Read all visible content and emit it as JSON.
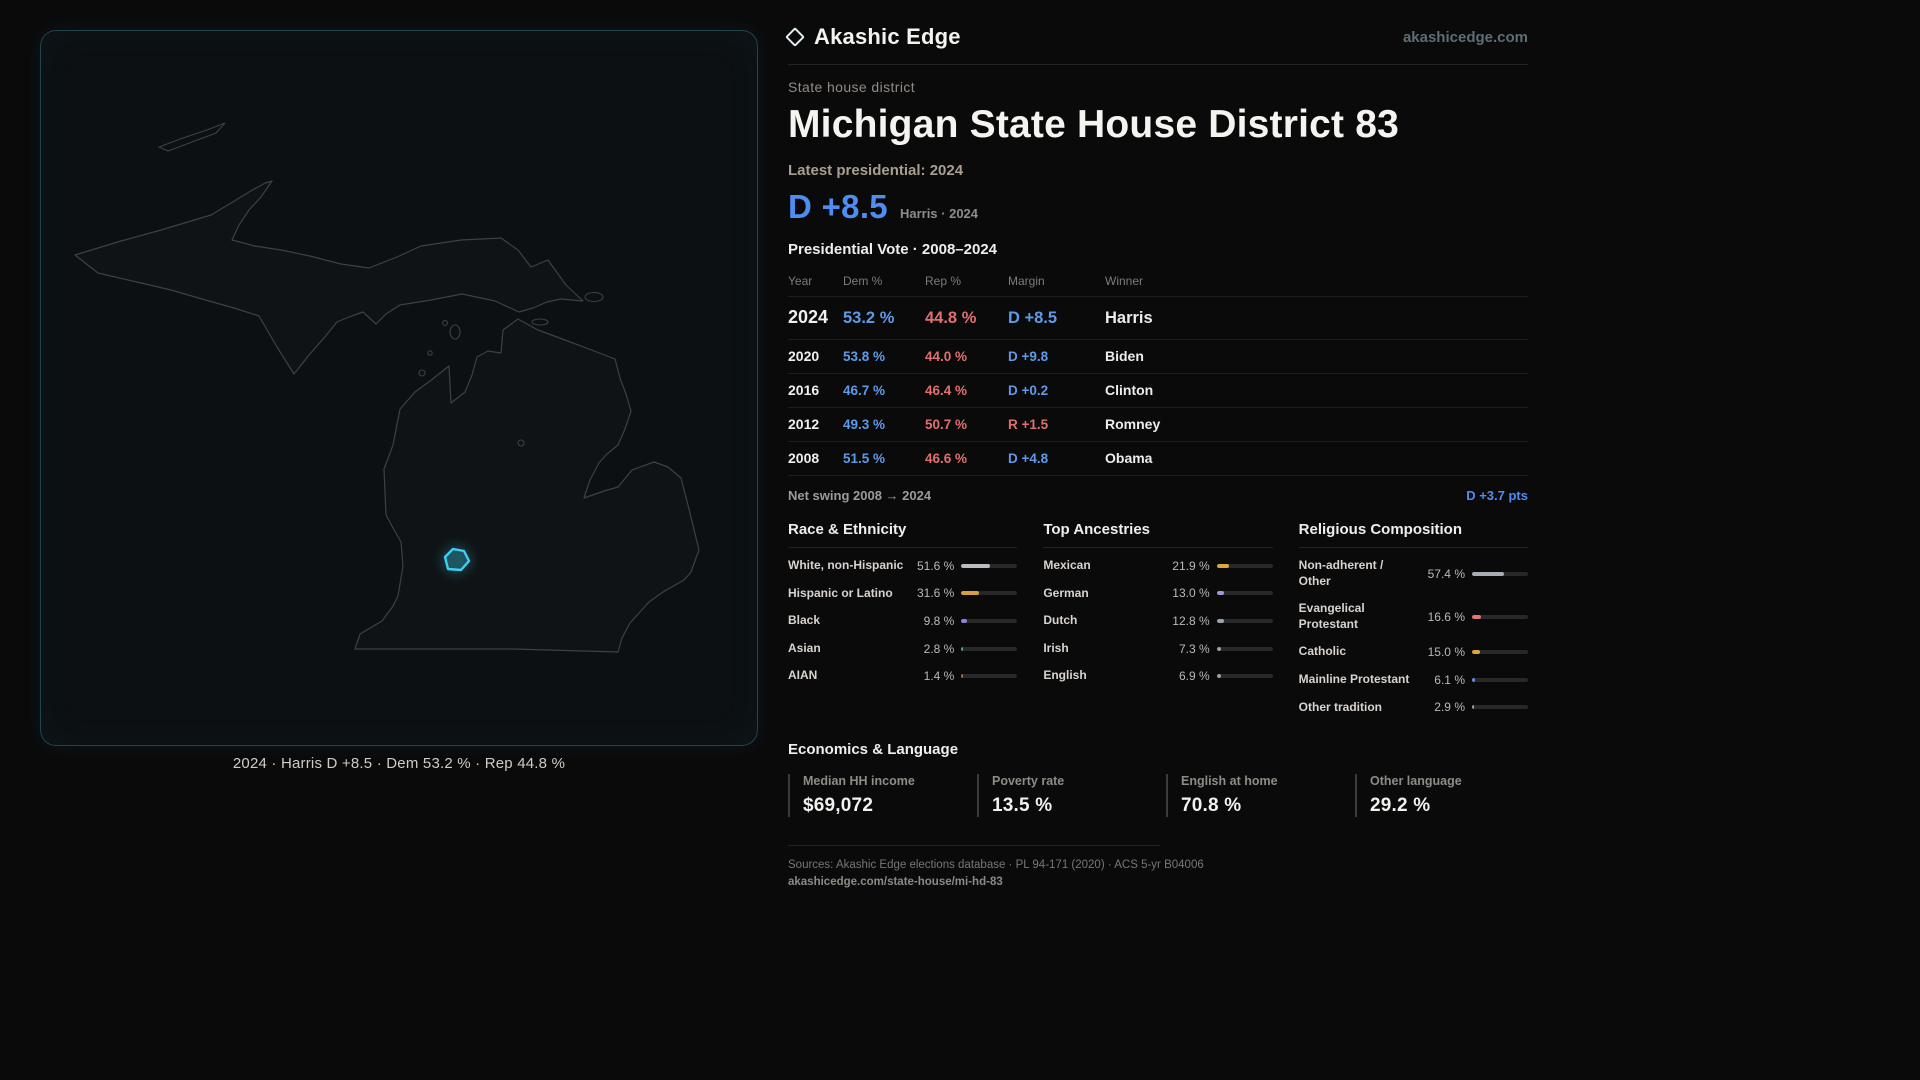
{
  "header": {
    "brand": "Akashic Edge",
    "site_link": "akashicedge.com"
  },
  "map": {
    "caption": "2024 · Harris D +8.5 · Dem 53.2 % · Rep 44.8 %",
    "district_color": "#3fd0f0"
  },
  "profile": {
    "kicker": "State house district",
    "title": "Michigan State House District 83",
    "latest_label": "Latest presidential: 2024",
    "headline_margin": "D +8.5",
    "headline_sub": "Harris · 2024"
  },
  "vote_table": {
    "title": "Presidential Vote · 2008–2024",
    "columns": [
      "Year",
      "Dem %",
      "Rep %",
      "Margin",
      "Winner"
    ],
    "rows": [
      {
        "year": "2024",
        "dem": "53.2 %",
        "rep": "44.8 %",
        "margin": "D +8.5",
        "party": "D",
        "winner": "Harris"
      },
      {
        "year": "2020",
        "dem": "53.8 %",
        "rep": "44.0 %",
        "margin": "D +9.8",
        "party": "D",
        "winner": "Biden"
      },
      {
        "year": "2016",
        "dem": "46.7 %",
        "rep": "46.4 %",
        "margin": "D +0.2",
        "party": "D",
        "winner": "Clinton"
      },
      {
        "year": "2012",
        "dem": "49.3 %",
        "rep": "50.7 %",
        "margin": "R +1.5",
        "party": "R",
        "winner": "Romney"
      },
      {
        "year": "2008",
        "dem": "51.5 %",
        "rep": "46.6 %",
        "margin": "D +4.8",
        "party": "D",
        "winner": "Obama"
      }
    ],
    "net_swing_label": "Net swing 2008 → 2024",
    "net_swing_value": "D +3.7 pts"
  },
  "demographics": {
    "race": {
      "title": "Race & Ethnicity",
      "rows": [
        {
          "label": "White, non-Hispanic",
          "value": "51.6 %",
          "pct": 51.6,
          "color": "#b9bdc2"
        },
        {
          "label": "Hispanic or Latino",
          "value": "31.6 %",
          "pct": 31.6,
          "color": "#d99f3f"
        },
        {
          "label": "Black",
          "value": "9.8 %",
          "pct": 9.8,
          "color": "#8f7fe0"
        },
        {
          "label": "Asian",
          "value": "2.8 %",
          "pct": 2.8,
          "color": "#4fae7d"
        },
        {
          "label": "AIAN",
          "value": "1.4 %",
          "pct": 1.4,
          "color": "#c2604e"
        }
      ]
    },
    "ancestry": {
      "title": "Top Ancestries",
      "rows": [
        {
          "label": "Mexican",
          "value": "21.9 %",
          "pct": 21.9,
          "color": "#d9a83d"
        },
        {
          "label": "German",
          "value": "13.0 %",
          "pct": 13.0,
          "color": "#a29ad0"
        },
        {
          "label": "Dutch",
          "value": "12.8 %",
          "pct": 12.8,
          "color": "#9aa3ab"
        },
        {
          "label": "Irish",
          "value": "7.3 %",
          "pct": 7.3,
          "color": "#9aa3ab"
        },
        {
          "label": "English",
          "value": "6.9 %",
          "pct": 6.9,
          "color": "#9aa3ab"
        }
      ]
    },
    "religion": {
      "title": "Religious Composition",
      "rows": [
        {
          "label": "Non-adherent / Other",
          "value": "57.4 %",
          "pct": 57.4,
          "color": "#a8adb3"
        },
        {
          "label": "Evangelical Protestant",
          "value": "16.6 %",
          "pct": 16.6,
          "color": "#e0766e"
        },
        {
          "label": "Catholic",
          "value": "15.0 %",
          "pct": 15.0,
          "color": "#d9a83d"
        },
        {
          "label": "Mainline Protestant",
          "value": "6.1 %",
          "pct": 6.1,
          "color": "#5b8ef0"
        },
        {
          "label": "Other tradition",
          "value": "2.9 %",
          "pct": 2.9,
          "color": "#9aa3ab"
        }
      ]
    }
  },
  "economics": {
    "title": "Economics & Language",
    "stats": [
      {
        "label": "Median HH income",
        "value": "$69,072"
      },
      {
        "label": "Poverty rate",
        "value": "13.5 %"
      },
      {
        "label": "English at home",
        "value": "70.8 %"
      },
      {
        "label": "Other language",
        "value": "29.2 %"
      }
    ]
  },
  "footer": {
    "sources": "Sources: Akashic Edge elections database · PL 94-171 (2020) · ACS 5-yr B04006",
    "permalink": "akashicedge.com/state-house/mi-hd-83"
  },
  "colors": {
    "dem_blue": "#5b9af0",
    "rep_red": "#e07070",
    "accent_cyan": "#3fd0f0"
  },
  "chart_data": [
    {
      "type": "table",
      "title": "Presidential Vote · 2008–2024",
      "columns": [
        "Year",
        "Dem %",
        "Rep %",
        "Margin",
        "Winner"
      ],
      "rows": [
        [
          2024,
          53.2,
          44.8,
          "D +8.5",
          "Harris"
        ],
        [
          2020,
          53.8,
          44.0,
          "D +9.8",
          "Biden"
        ],
        [
          2016,
          46.7,
          46.4,
          "D +0.2",
          "Clinton"
        ],
        [
          2012,
          49.3,
          50.7,
          "R +1.5",
          "Romney"
        ],
        [
          2008,
          51.5,
          46.6,
          "D +4.8",
          "Obama"
        ]
      ],
      "annotations": [
        "Net swing 2008 → 2024: D +3.7 pts"
      ]
    },
    {
      "type": "bar",
      "title": "Race & Ethnicity",
      "categories": [
        "White, non-Hispanic",
        "Hispanic or Latino",
        "Black",
        "Asian",
        "AIAN"
      ],
      "values": [
        51.6,
        31.6,
        9.8,
        2.8,
        1.4
      ],
      "unit": "%",
      "xlim": [
        0,
        100
      ]
    },
    {
      "type": "bar",
      "title": "Top Ancestries",
      "categories": [
        "Mexican",
        "German",
        "Dutch",
        "Irish",
        "English"
      ],
      "values": [
        21.9,
        13.0,
        12.8,
        7.3,
        6.9
      ],
      "unit": "%",
      "xlim": [
        0,
        100
      ]
    },
    {
      "type": "bar",
      "title": "Religious Composition",
      "categories": [
        "Non-adherent / Other",
        "Evangelical Protestant",
        "Catholic",
        "Mainline Protestant",
        "Other tradition"
      ],
      "values": [
        57.4,
        16.6,
        15.0,
        6.1,
        2.9
      ],
      "unit": "%",
      "xlim": [
        0,
        100
      ]
    },
    {
      "type": "table",
      "title": "Economics & Language",
      "columns": [
        "Median HH income",
        "Poverty rate",
        "English at home",
        "Other language"
      ],
      "rows": [
        [
          "$69,072",
          "13.5 %",
          "70.8 %",
          "29.2 %"
        ]
      ]
    }
  ]
}
